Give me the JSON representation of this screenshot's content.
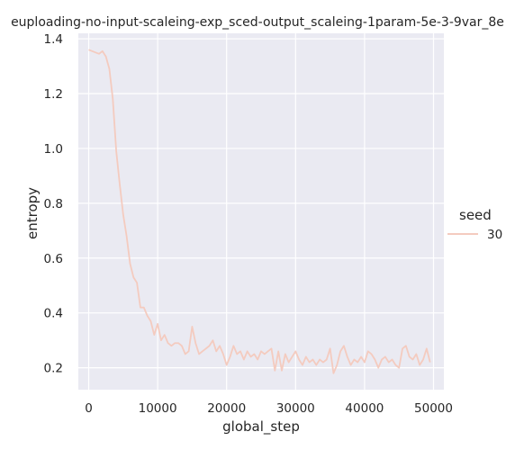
{
  "chart_data": {
    "type": "line",
    "title": "euploading-no-input-scaleing-exp_sced-output_scaleing-1param-5e-3-9var_8e",
    "xlabel": "global_step",
    "ylabel": "entropy",
    "xlim": [
      -1500,
      51500
    ],
    "ylim": [
      0.12,
      1.42
    ],
    "x_ticks": [
      0,
      10000,
      20000,
      30000,
      40000,
      50000
    ],
    "y_ticks": [
      0.2,
      0.4,
      0.6,
      0.8,
      1.0,
      1.2,
      1.4
    ],
    "x_tick_labels": [
      "0",
      "10000",
      "20000",
      "30000",
      "40000",
      "50000"
    ],
    "y_tick_labels": [
      "0.2",
      "0.4",
      "0.6",
      "0.8",
      "1.0",
      "1.2",
      "1.4"
    ],
    "grid": true,
    "legend": {
      "title": "seed",
      "placement": "right",
      "entries": [
        "30"
      ]
    },
    "colors": {
      "series": "#f4cbbf",
      "plot_bg": "#eaeaf2",
      "grid": "#ffffff"
    },
    "series": [
      {
        "name": "30",
        "x": [
          0,
          500,
          1000,
          1500,
          2000,
          2500,
          3000,
          3500,
          4000,
          4500,
          5000,
          5500,
          6000,
          6500,
          7000,
          7500,
          8000,
          8500,
          9000,
          9500,
          10000,
          10500,
          11000,
          11500,
          12000,
          12500,
          13000,
          13500,
          14000,
          14500,
          15000,
          15500,
          16000,
          16500,
          17000,
          17500,
          18000,
          18500,
          19000,
          19500,
          20000,
          20500,
          21000,
          21500,
          22000,
          22500,
          23000,
          23500,
          24000,
          24500,
          25000,
          25500,
          26000,
          26500,
          27000,
          27500,
          28000,
          28500,
          29000,
          29500,
          30000,
          30500,
          31000,
          31500,
          32000,
          32500,
          33000,
          33500,
          34000,
          34500,
          35000,
          35500,
          36000,
          36500,
          37000,
          37500,
          38000,
          38500,
          39000,
          39500,
          40000,
          40500,
          41000,
          41500,
          42000,
          42500,
          43000,
          43500,
          44000,
          44500,
          45000,
          45500,
          46000,
          46500,
          47000,
          47500,
          48000,
          48500,
          49000,
          49500
        ],
        "values": [
          1.36,
          1.355,
          1.35,
          1.345,
          1.355,
          1.335,
          1.29,
          1.18,
          0.99,
          0.87,
          0.76,
          0.68,
          0.58,
          0.53,
          0.51,
          0.42,
          0.42,
          0.39,
          0.37,
          0.32,
          0.36,
          0.3,
          0.32,
          0.29,
          0.28,
          0.29,
          0.29,
          0.28,
          0.25,
          0.26,
          0.35,
          0.29,
          0.25,
          0.26,
          0.27,
          0.28,
          0.3,
          0.26,
          0.28,
          0.25,
          0.21,
          0.24,
          0.28,
          0.25,
          0.26,
          0.23,
          0.26,
          0.24,
          0.25,
          0.23,
          0.26,
          0.25,
          0.26,
          0.27,
          0.19,
          0.26,
          0.19,
          0.25,
          0.22,
          0.24,
          0.26,
          0.23,
          0.21,
          0.24,
          0.22,
          0.23,
          0.21,
          0.23,
          0.22,
          0.23,
          0.27,
          0.18,
          0.21,
          0.26,
          0.28,
          0.24,
          0.21,
          0.23,
          0.22,
          0.24,
          0.22,
          0.26,
          0.25,
          0.23,
          0.2,
          0.23,
          0.24,
          0.22,
          0.23,
          0.21,
          0.2,
          0.27,
          0.28,
          0.24,
          0.23,
          0.25,
          0.21,
          0.23,
          0.27,
          0.22
        ]
      }
    ]
  }
}
